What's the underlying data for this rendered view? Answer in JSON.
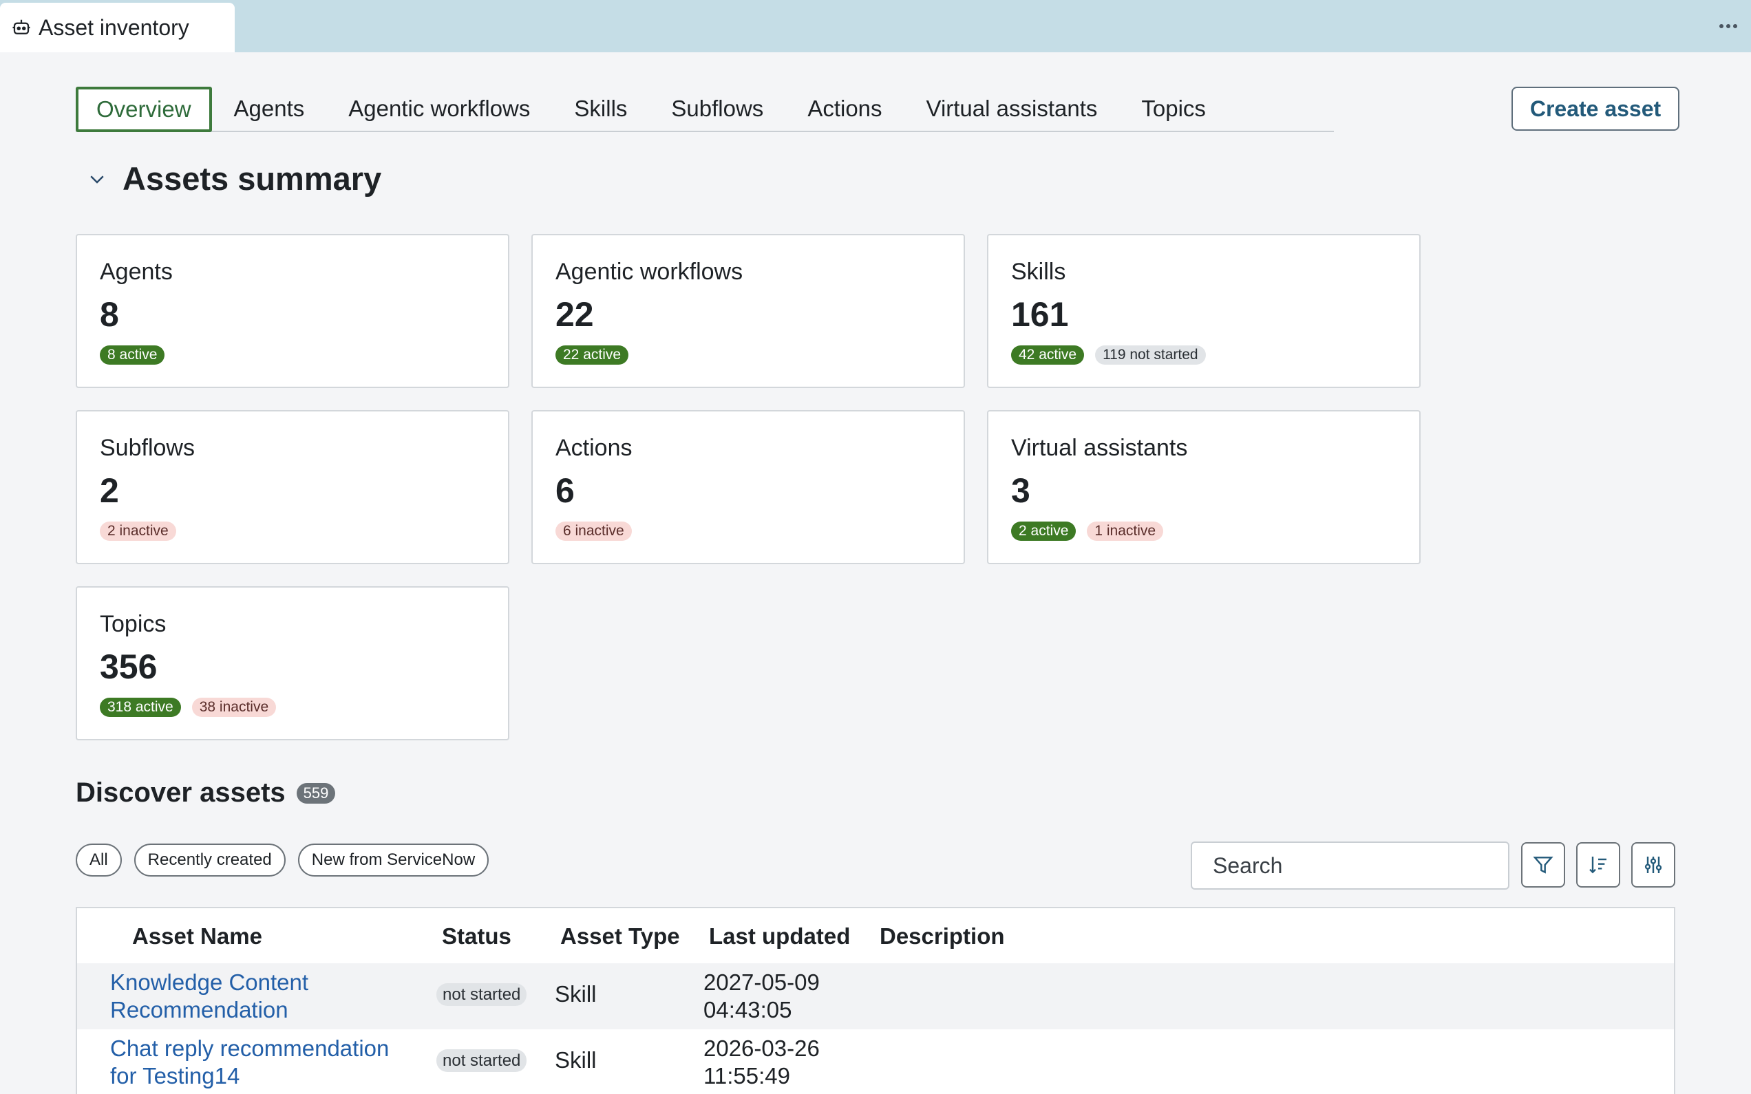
{
  "app": {
    "tab_title": "Asset inventory"
  },
  "nav": {
    "tabs": [
      {
        "label": "Overview",
        "active": true
      },
      {
        "label": "Agents"
      },
      {
        "label": "Agentic workflows"
      },
      {
        "label": "Skills"
      },
      {
        "label": "Subflows"
      },
      {
        "label": "Actions"
      },
      {
        "label": "Virtual assistants"
      },
      {
        "label": "Topics"
      }
    ],
    "create_button": "Create asset"
  },
  "summary": {
    "title": "Assets summary",
    "cards": [
      {
        "title": "Agents",
        "count": "8",
        "badges": [
          {
            "text": "8 active",
            "kind": "active"
          }
        ]
      },
      {
        "title": "Agentic workflows",
        "count": "22",
        "badges": [
          {
            "text": "22 active",
            "kind": "active"
          }
        ]
      },
      {
        "title": "Skills",
        "count": "161",
        "badges": [
          {
            "text": "42 active",
            "kind": "active"
          },
          {
            "text": "119 not started",
            "kind": "notstarted"
          }
        ]
      },
      {
        "title": "Subflows",
        "count": "2",
        "badges": [
          {
            "text": "2 inactive",
            "kind": "inactive"
          }
        ]
      },
      {
        "title": "Actions",
        "count": "6",
        "badges": [
          {
            "text": "6 inactive",
            "kind": "inactive"
          }
        ]
      },
      {
        "title": "Virtual assistants",
        "count": "3",
        "badges": [
          {
            "text": "2 active",
            "kind": "active"
          },
          {
            "text": "1 inactive",
            "kind": "inactive"
          }
        ]
      },
      {
        "title": "Topics",
        "count": "356",
        "badges": [
          {
            "text": "318 active",
            "kind": "active"
          },
          {
            "text": "38 inactive",
            "kind": "inactive"
          }
        ]
      }
    ]
  },
  "discover": {
    "title": "Discover assets",
    "count": "559",
    "chips": [
      "All",
      "Recently created",
      "New from ServiceNow"
    ],
    "search_placeholder": "Search",
    "table": {
      "headers": {
        "name": "Asset Name",
        "status": "Status",
        "type": "Asset Type",
        "updated": "Last updated",
        "description": "Description"
      },
      "rows": [
        {
          "name_line1": "Knowledge Content",
          "name_line2": "Recommendation",
          "status": "not started",
          "type": "Skill",
          "updated_date": "2027-05-09",
          "updated_time": "04:43:05",
          "description": ""
        },
        {
          "name_line1": "Chat reply recommendation",
          "name_line2": "for Testing14",
          "status": "not started",
          "type": "Skill",
          "updated_date": "2026-03-26",
          "updated_time": "11:55:49",
          "description": ""
        }
      ]
    }
  },
  "icons": {
    "app": "robot-icon",
    "more": "more-horizontal-icon",
    "collapse": "chevron-down-icon",
    "search": "search-icon",
    "filter": "filter-icon",
    "sort": "sort-icon",
    "settings": "sliders-icon"
  }
}
